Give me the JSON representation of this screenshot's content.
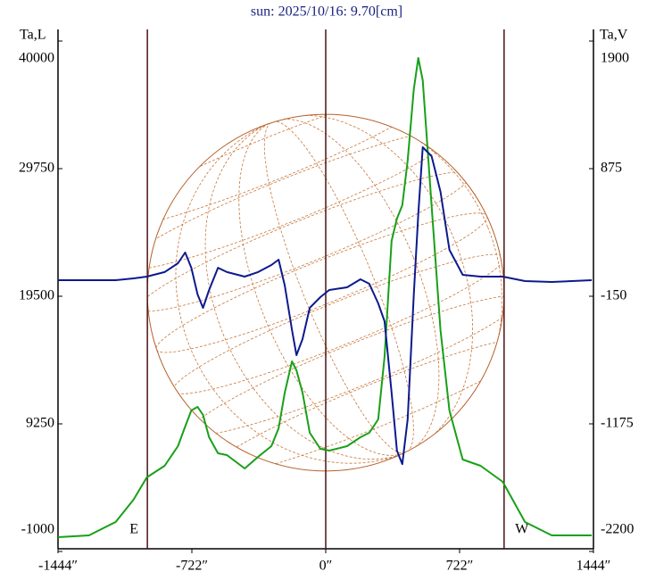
{
  "chart_data": {
    "type": "line",
    "title": "sun: 2025/10/16: 9.70[cm]",
    "y_label": "Ta,L",
    "y2_label": "Ta,V",
    "x": [
      -1444,
      -1277,
      -1133,
      -1037,
      -965,
      -869,
      -797,
      -758,
      -725,
      -691,
      -662,
      -629,
      -581,
      -533,
      -437,
      -365,
      -293,
      -254,
      -221,
      -182,
      -158,
      -125,
      -86,
      -29,
      19,
      115,
      187,
      235,
      283,
      317,
      355,
      384,
      413,
      442,
      475,
      499,
      523,
      571,
      619,
      667,
      739,
      835,
      955,
      1075,
      1219,
      1435
    ],
    "series": [
      {
        "name": "Ta,L",
        "color": "#18a018",
        "values": [
          146,
          290,
          1365,
          3157,
          4949,
          5881,
          7458,
          9035,
          10325,
          10612,
          9967,
          8175,
          6884,
          6741,
          5666,
          6598,
          7458,
          8891,
          11759,
          14267,
          13551,
          11759,
          8533,
          7243,
          7099,
          7458,
          8175,
          8533,
          9608,
          14626,
          23944,
          25736,
          26811,
          30395,
          36130,
          38639,
          36847,
          26811,
          16776,
          10325,
          6383,
          5881,
          4591,
          1365,
          290,
          290
        ]
      },
      {
        "name": "Ta,V",
        "color": "#0c1a8e",
        "axis": "y2",
        "values": [
          -21,
          -21,
          -21,
          -7,
          8,
          44,
          115,
          201,
          79,
          -136,
          -243,
          -100,
          79,
          44,
          8,
          44,
          101,
          144,
          -64,
          -422,
          -623,
          -494,
          -243,
          -157,
          -100,
          -78,
          -14,
          -50,
          -207,
          -351,
          -924,
          -1390,
          -1498,
          -1139,
          -136,
          509,
          1047,
          975,
          689,
          223,
          22,
          8,
          8,
          -28,
          -35,
          -21
        ]
      }
    ],
    "xlim": [
      -1444,
      1444
    ],
    "xticks": [
      {
        "value": -1444,
        "label": "-1444″"
      },
      {
        "value": -722,
        "label": "-722″"
      },
      {
        "value": 0,
        "label": "0″"
      },
      {
        "value": 722,
        "label": "722″"
      },
      {
        "value": 1444,
        "label": "1444″"
      }
    ],
    "ylim": [
      -1000,
      40000
    ],
    "yticks": [
      40000,
      29750,
      19500,
      9250,
      -1000
    ],
    "y2lim": [
      -2200,
      1900
    ],
    "y2ticks": [
      1900,
      875,
      -150,
      -1175,
      -2200
    ],
    "markers": [
      {
        "x": -962,
        "label": "E"
      },
      {
        "x": 962,
        "label": "W"
      }
    ]
  }
}
